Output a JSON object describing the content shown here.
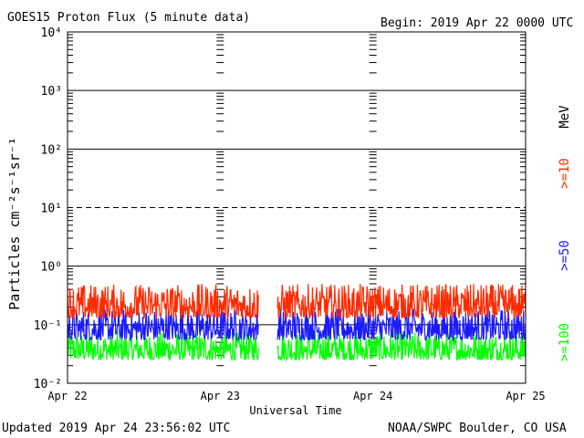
{
  "header": {
    "title": "GOES15 Proton Flux (5 minute data)",
    "begin": "Begin: 2019 Apr 22 0000 UTC"
  },
  "footer": {
    "updated": "Updated 2019 Apr 24 23:56:02 UTC",
    "credit": "NOAA/SWPC Boulder, CO USA"
  },
  "chart_data": {
    "type": "line",
    "title": "GOES15 Proton Flux (5 minute data)",
    "xlabel": "Universal Time",
    "ylabel": "Particles cm⁻²s⁻¹sr⁻¹",
    "yscale": "log",
    "ylim": [
      0.01,
      10000
    ],
    "y_ticks": [
      {
        "value": 10000,
        "label": "10⁴"
      },
      {
        "value": 1000,
        "label": "10³"
      },
      {
        "value": 100,
        "label": "10²"
      },
      {
        "value": 10,
        "label": "10¹"
      },
      {
        "value": 1,
        "label": "10⁰"
      },
      {
        "value": 0.1,
        "label": "10⁻¹"
      },
      {
        "value": 0.01,
        "label": "10⁻²"
      }
    ],
    "x_ticks": [
      "Apr 22",
      "Apr 23",
      "Apr 24",
      "Apr 25"
    ],
    "xlim": [
      "2019-04-22",
      "2019-04-25"
    ],
    "energy_unit": "MeV",
    "data_gap": [
      "2019-04-23 06:00",
      "2019-04-23 09:00"
    ],
    "series": [
      {
        "name": ">=10",
        "color": "#ff2a00",
        "typical": 0.2,
        "low": 0.13,
        "high": 0.5
      },
      {
        "name": ">=50",
        "color": "#1a1aff",
        "typical": 0.085,
        "low": 0.055,
        "high": 0.19
      },
      {
        "name": ">=100",
        "color": "#00ff00",
        "typical": 0.04,
        "low": 0.025,
        "high": 0.075
      }
    ]
  }
}
